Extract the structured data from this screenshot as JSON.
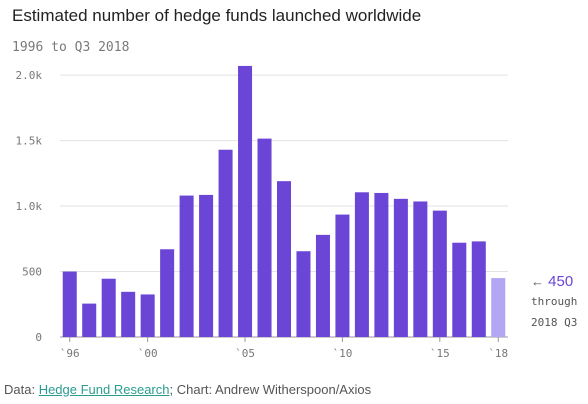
{
  "chart_data": {
    "type": "bar",
    "title": "Estimated number of hedge funds launched worldwide",
    "subtitle": "1996 to Q3 2018",
    "xlabel": "",
    "ylabel": "",
    "ylim": [
      0,
      2100
    ],
    "grid": true,
    "y_ticks": [
      0,
      500,
      1000,
      1500,
      2000
    ],
    "y_tick_labels": [
      "0",
      "500",
      "1.0k",
      "1.5k",
      "2.0k"
    ],
    "categories": [
      "1996",
      "1997",
      "1998",
      "1999",
      "2000",
      "2001",
      "2002",
      "2003",
      "2004",
      "2005",
      "2006",
      "2007",
      "2008",
      "2009",
      "2010",
      "2011",
      "2012",
      "2013",
      "2014",
      "2015",
      "2016",
      "2017",
      "2018"
    ],
    "x_tick_labels": [
      {
        "category": "1996",
        "label": "`96"
      },
      {
        "category": "2000",
        "label": "`00"
      },
      {
        "category": "2005",
        "label": "`05"
      },
      {
        "category": "2010",
        "label": "`10"
      },
      {
        "category": "2015",
        "label": "`15"
      },
      {
        "category": "2018",
        "label": "`18"
      }
    ],
    "values": [
      500,
      255,
      445,
      345,
      325,
      670,
      1080,
      1085,
      1430,
      2070,
      1515,
      1190,
      655,
      780,
      935,
      1105,
      1100,
      1055,
      1035,
      965,
      720,
      730,
      450
    ],
    "colors": {
      "bar": "#6b46d6",
      "highlight_bar": "#b3a6f2",
      "highlight_index": 22
    },
    "annotation": {
      "value_label": "450",
      "line1": "through",
      "line2": "2018 Q3"
    }
  },
  "source": {
    "prefix": "Data: ",
    "link_text": "Hedge Fund Research",
    "suffix": "; Chart: Andrew Witherspoon/Axios"
  }
}
